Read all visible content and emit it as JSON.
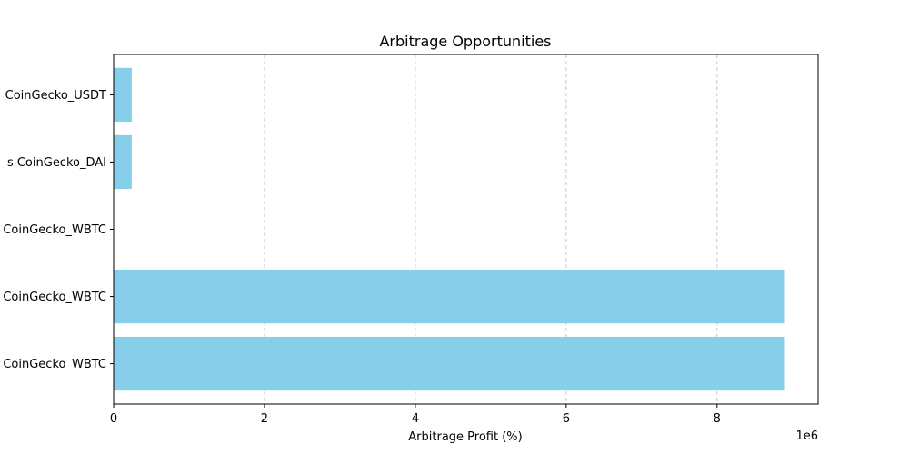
{
  "chart_data": {
    "type": "bar",
    "orientation": "horizontal",
    "title": "Arbitrage Opportunities",
    "xlabel": "Arbitrage Profit (%)",
    "ylabel": "",
    "x_offset_label": "1e6",
    "x_scale": 1000000,
    "xlim": [
      0,
      9340000
    ],
    "xticks": [
      0,
      2,
      4,
      6,
      8
    ],
    "grid": "x-dashed",
    "categories": [
      "CoinGecko_WBTC",
      "CoinGecko_WBTC",
      "CoinGecko_WBTC",
      "s CoinGecko_DAI",
      "CoinGecko_USDT"
    ],
    "values": [
      8900000,
      8900000,
      0,
      240000,
      240000
    ],
    "colors": {
      "bar": "#87ceeb",
      "grid": "#c8c8c8",
      "axis": "#000000"
    }
  }
}
